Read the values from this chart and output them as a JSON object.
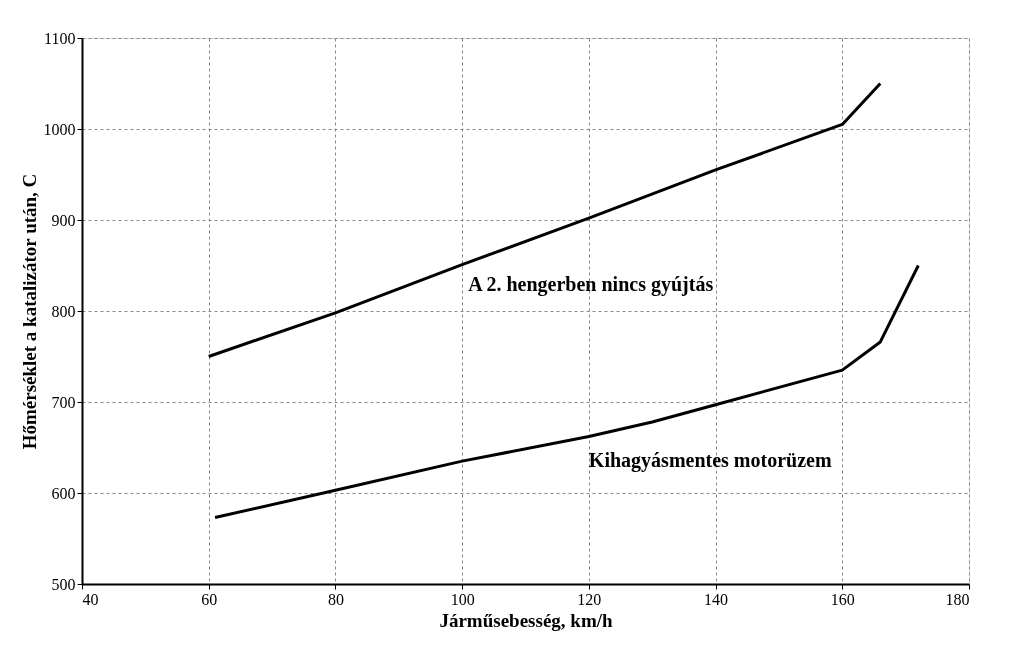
{
  "chart_data": {
    "type": "line",
    "xlabel": "Járműsebesség, km/h",
    "ylabel": "Hőmérséklet a katalizátor után, C",
    "xlim": [
      40,
      180
    ],
    "xticks": [
      40,
      60,
      80,
      100,
      120,
      140,
      160,
      180
    ],
    "ylim": [
      500,
      1100
    ],
    "yticks": [
      500,
      600,
      700,
      800,
      900,
      1000,
      1100
    ],
    "grid": true,
    "marker": "none",
    "line_style": "solid",
    "series": [
      {
        "name": "A 2. hengerben nincs gyújtás",
        "color": "#000000",
        "x": [
          60,
          80,
          100,
          120,
          140,
          160,
          166
        ],
        "values": [
          750,
          798,
          851,
          902,
          955,
          1005,
          1050
        ]
      },
      {
        "name": "Kihagyásmentes motorüzem",
        "color": "#000000",
        "x": [
          61,
          80,
          100,
          120,
          130,
          140,
          160,
          166,
          172
        ],
        "values": [
          573,
          603,
          635,
          662,
          678,
          697,
          735,
          766,
          850
        ]
      }
    ]
  }
}
